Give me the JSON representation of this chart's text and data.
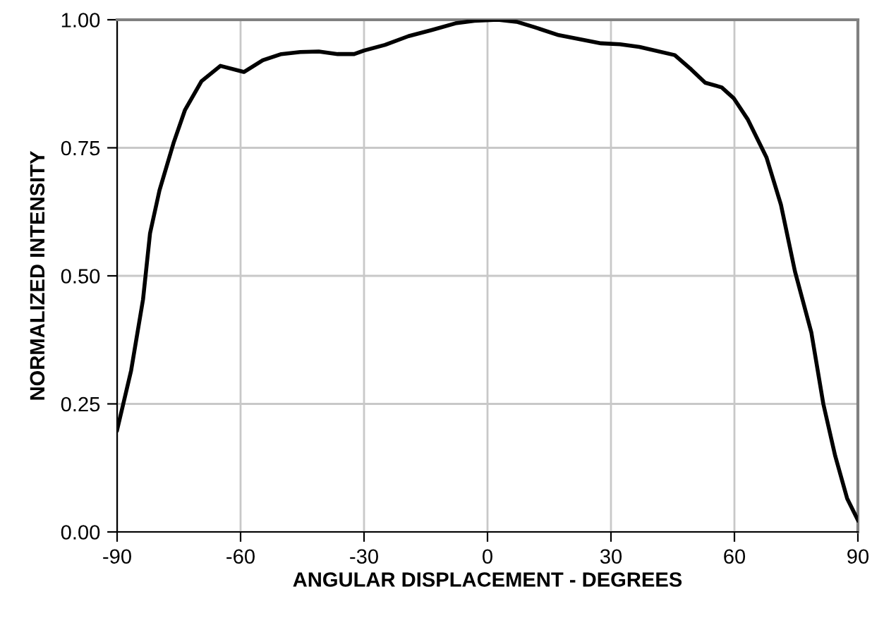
{
  "chart_data": {
    "type": "line",
    "xlabel": "ANGULAR DISPLACEMENT - DEGREES",
    "ylabel": "NORMALIZED INTENSITY",
    "xlim": [
      -90,
      90
    ],
    "xticks": [
      -90,
      -60,
      -30,
      0,
      30,
      60,
      90
    ],
    "ylim": [
      0,
      1
    ],
    "yticks": [
      {
        "value": 0,
        "label": "0.00"
      },
      {
        "value": 0.25,
        "label": "0.25"
      },
      {
        "value": 0.5,
        "label": "0.50"
      },
      {
        "value": 0.75,
        "label": "0.75"
      },
      {
        "value": 1,
        "label": "1.00"
      }
    ],
    "grid": true,
    "marker": "none",
    "line_style": "solid",
    "series": [
      {
        "color": "#000000",
        "x": [
          -90,
          -86.6,
          -83.7,
          -82.0,
          -79.7,
          -76.3,
          -73.5,
          -69.5,
          -64.9,
          -59.2,
          -54.6,
          -50.1,
          -45.5,
          -41.0,
          -36.4,
          -32.4,
          -30.0,
          -24.9,
          -19.2,
          -13.5,
          -7.8,
          -3.2,
          2.5,
          7.1,
          11.6,
          17.3,
          23.0,
          27.6,
          32.2,
          36.9,
          45.5,
          49.5,
          52.9,
          56.9,
          59.8,
          63.2,
          67.8,
          71.3,
          74.7,
          78.7,
          81.6,
          84.5,
          87.4,
          90
        ],
        "values": [
          0.199,
          0.315,
          0.454,
          0.583,
          0.667,
          0.759,
          0.824,
          0.88,
          0.91,
          0.898,
          0.921,
          0.933,
          0.937,
          0.938,
          0.933,
          0.933,
          0.94,
          0.951,
          0.968,
          0.98,
          0.993,
          0.998,
          1.0,
          0.996,
          0.985,
          0.97,
          0.961,
          0.954,
          0.952,
          0.947,
          0.931,
          0.903,
          0.877,
          0.868,
          0.847,
          0.806,
          0.731,
          0.639,
          0.509,
          0.389,
          0.25,
          0.148,
          0.065,
          0.023
        ]
      }
    ]
  }
}
